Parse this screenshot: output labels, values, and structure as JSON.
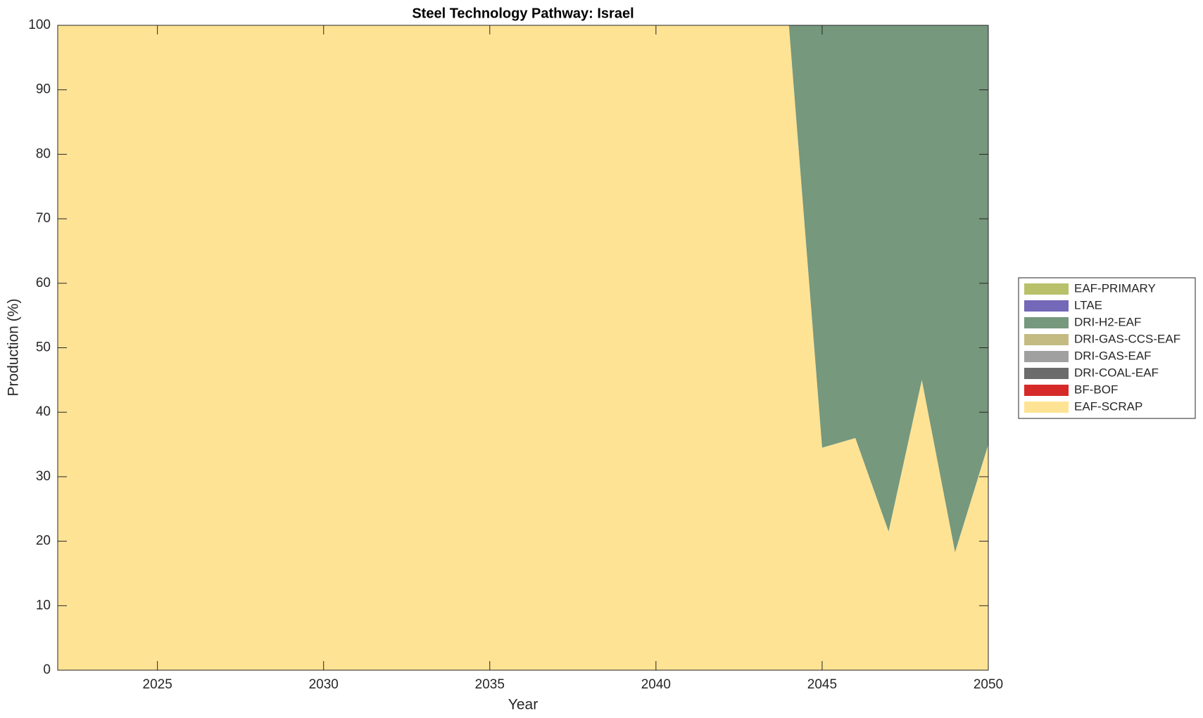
{
  "chart_data": {
    "type": "stacked-area",
    "title": "Steel Technology Pathway: Israel",
    "x_label": "Year",
    "y_label": "Production (%)",
    "x": [
      2022,
      2023,
      2024,
      2025,
      2026,
      2027,
      2028,
      2029,
      2030,
      2031,
      2032,
      2033,
      2034,
      2035,
      2036,
      2037,
      2038,
      2039,
      2040,
      2041,
      2042,
      2043,
      2044,
      2045,
      2046,
      2047,
      2048,
      2049,
      2050
    ],
    "series": [
      {
        "name": "EAF-SCRAP",
        "color": "#fee394",
        "values": [
          100,
          100,
          100,
          100,
          100,
          100,
          100,
          100,
          100,
          100,
          100,
          100,
          100,
          100,
          100,
          100,
          100,
          100,
          100,
          100,
          100,
          100,
          100,
          34.5,
          36,
          21.5,
          45,
          18.3,
          35
        ]
      },
      {
        "name": "BF-BOF",
        "color": "#d62a28",
        "values": [
          0,
          0,
          0,
          0,
          0,
          0,
          0,
          0,
          0,
          0,
          0,
          0,
          0,
          0,
          0,
          0,
          0,
          0,
          0,
          0,
          0,
          0,
          0,
          0,
          0,
          0,
          0,
          0,
          0
        ]
      },
      {
        "name": "DRI-COAL-EAF",
        "color": "#6c6c6c",
        "values": [
          0,
          0,
          0,
          0,
          0,
          0,
          0,
          0,
          0,
          0,
          0,
          0,
          0,
          0,
          0,
          0,
          0,
          0,
          0,
          0,
          0,
          0,
          0,
          0,
          0,
          0,
          0,
          0,
          0
        ]
      },
      {
        "name": "DRI-GAS-EAF",
        "color": "#a0a0a0",
        "values": [
          0,
          0,
          0,
          0,
          0,
          0,
          0,
          0,
          0,
          0,
          0,
          0,
          0,
          0,
          0,
          0,
          0,
          0,
          0,
          0,
          0,
          0,
          0,
          0,
          0,
          0,
          0,
          0,
          0
        ]
      },
      {
        "name": "DRI-GAS-CCS-EAF",
        "color": "#c4bb82",
        "values": [
          0,
          0,
          0,
          0,
          0,
          0,
          0,
          0,
          0,
          0,
          0,
          0,
          0,
          0,
          0,
          0,
          0,
          0,
          0,
          0,
          0,
          0,
          0,
          0,
          0,
          0,
          0,
          0,
          0
        ]
      },
      {
        "name": "DRI-H2-EAF",
        "color": "#76987d",
        "values": [
          0,
          0,
          0,
          0,
          0,
          0,
          0,
          0,
          0,
          0,
          0,
          0,
          0,
          0,
          0,
          0,
          0,
          0,
          0,
          0,
          0,
          0,
          0,
          65.5,
          64,
          78.5,
          55,
          81.7,
          65
        ]
      },
      {
        "name": "LTAE",
        "color": "#7468b8",
        "values": [
          0,
          0,
          0,
          0,
          0,
          0,
          0,
          0,
          0,
          0,
          0,
          0,
          0,
          0,
          0,
          0,
          0,
          0,
          0,
          0,
          0,
          0,
          0,
          0,
          0,
          0,
          0,
          0,
          0
        ]
      },
      {
        "name": "EAF-PRIMARY",
        "color": "#b9c06a",
        "values": [
          0,
          0,
          0,
          0,
          0,
          0,
          0,
          0,
          0,
          0,
          0,
          0,
          0,
          0,
          0,
          0,
          0,
          0,
          0,
          0,
          0,
          0,
          0,
          0,
          0,
          0,
          0,
          0,
          0
        ]
      }
    ],
    "xlim": [
      2022,
      2050
    ],
    "xticks": [
      2025,
      2030,
      2035,
      2040,
      2045,
      2050
    ],
    "ylim": [
      0,
      100
    ],
    "yticks": [
      0,
      10,
      20,
      30,
      40,
      50,
      60,
      70,
      80,
      90,
      100
    ],
    "legend": "right"
  }
}
